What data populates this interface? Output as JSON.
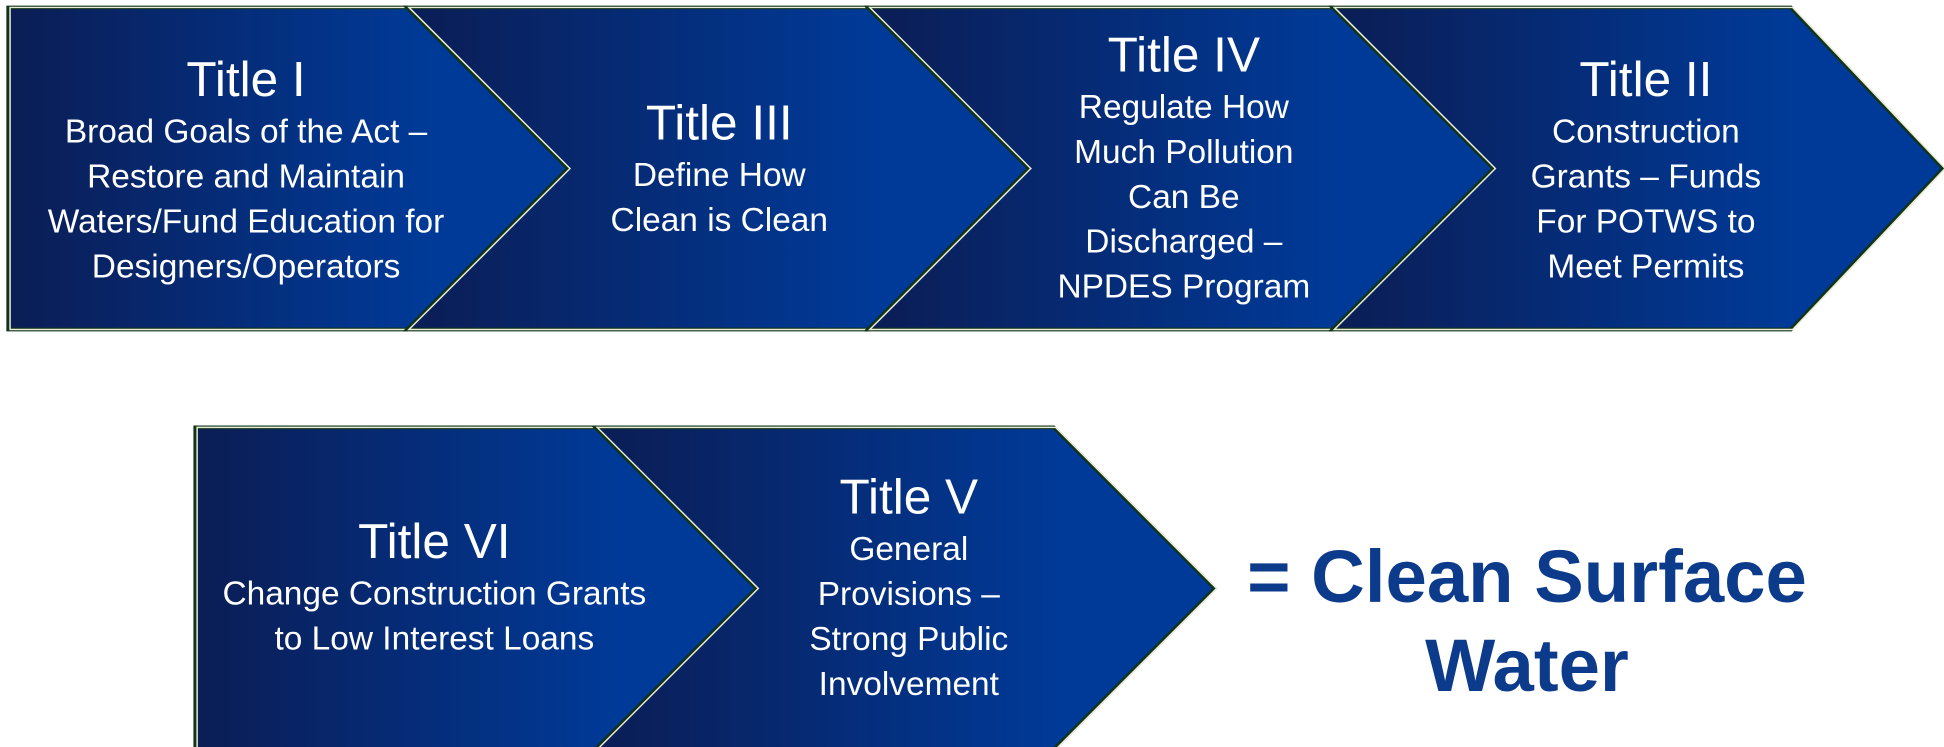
{
  "chevrons": [
    {
      "title": "Title I",
      "lines": [
        "Broad Goals of the Act –",
        "Restore and Maintain",
        "Waters/Fund Education for",
        "Designers/Operators"
      ]
    },
    {
      "title": "Title III",
      "lines": [
        "Define How",
        "Clean is Clean"
      ]
    },
    {
      "title": "Title IV",
      "lines": [
        "Regulate How",
        "Much Pollution",
        "Can Be",
        "Discharged –",
        "NPDES Program"
      ]
    },
    {
      "title": "Title II",
      "lines": [
        "Construction",
        "Grants – Funds",
        "For POTWS to",
        "Meet Permits"
      ]
    },
    {
      "title": "Title VI",
      "lines": [
        "Change Construction Grants",
        "to Low Interest Loans"
      ]
    },
    {
      "title": "Title V",
      "lines": [
        "General",
        "Provisions –",
        "Strong Public",
        "Involvement"
      ]
    }
  ],
  "result": {
    "lines": [
      "= Clean Surface",
      "Water"
    ]
  }
}
